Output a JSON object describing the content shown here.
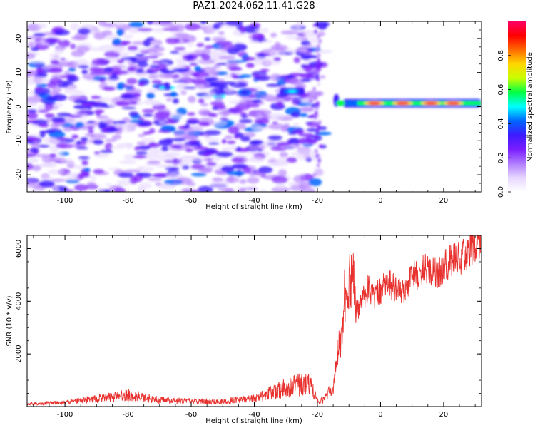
{
  "title": "PAZ1.2024.062.11.41.G28",
  "colors": {
    "line": "#e8312e",
    "background": "#ffffff",
    "colormap": [
      "#ffffff",
      "#e6d6ff",
      "#b07cff",
      "#7a1dff",
      "#3d1bff",
      "#0066ff",
      "#00ffff",
      "#00ff44",
      "#c8ff00",
      "#ffd700",
      "#ff6a00",
      "#ff0000",
      "#ff0066"
    ]
  },
  "chart_data": [
    {
      "type": "heatmap",
      "xlabel": "Height of straight line (km)",
      "ylabel": "Frequency (Hz)",
      "xlim": [
        -112,
        32
      ],
      "ylim": [
        -25,
        25
      ],
      "xticks": [
        -100,
        -80,
        -60,
        -40,
        -20,
        0,
        20
      ],
      "yticks": [
        -20,
        -10,
        0,
        10,
        20
      ],
      "colorbar": {
        "label": "Normalized spectral amplitude",
        "range": [
          0,
          1
        ],
        "ticks": [
          "0.0",
          "0.2",
          "0.4",
          "0.6",
          "0.8"
        ]
      },
      "description_values": {
        "noise_region_x": [
          -112,
          -20
        ],
        "signal_line_frequency_hz": 1,
        "signal_line_x": [
          -12,
          32
        ],
        "signal_peak_amplitude": 1.0,
        "transition_feature_x": [
          -32,
          -24
        ],
        "transition_feature_frequency_hz": 4.5
      }
    },
    {
      "type": "line",
      "xlabel": "Height of straight line (km)",
      "ylabel": "SNR (10 * v/v)",
      "xlim": [
        -112,
        32
      ],
      "ylim": [
        0,
        6500
      ],
      "xticks": [
        -100,
        -80,
        -60,
        -40,
        -20,
        0,
        20
      ],
      "yticks": [
        2000,
        4000,
        6000
      ],
      "series": [
        {
          "x": [
            -112,
            -100,
            -90,
            -85,
            -80,
            -70,
            -60,
            -50,
            -45,
            -40,
            -35,
            -30,
            -25,
            -22,
            -20,
            -18,
            -15,
            -13,
            -12,
            -11,
            -10,
            -9,
            -8,
            -6,
            -4,
            -2,
            0,
            2,
            5,
            8,
            10,
            12,
            15,
            18,
            20,
            22,
            25,
            28,
            30,
            32
          ],
          "y": [
            100,
            150,
            300,
            350,
            450,
            250,
            200,
            200,
            250,
            300,
            500,
            700,
            850,
            800,
            200,
            250,
            700,
            2500,
            3000,
            4500,
            4400,
            5000,
            3500,
            4000,
            4500,
            4200,
            4400,
            4700,
            4500,
            4400,
            5100,
            5000,
            5300,
            5000,
            5300,
            5500,
            5600,
            6000,
            6200,
            6400
          ]
        }
      ]
    }
  ]
}
